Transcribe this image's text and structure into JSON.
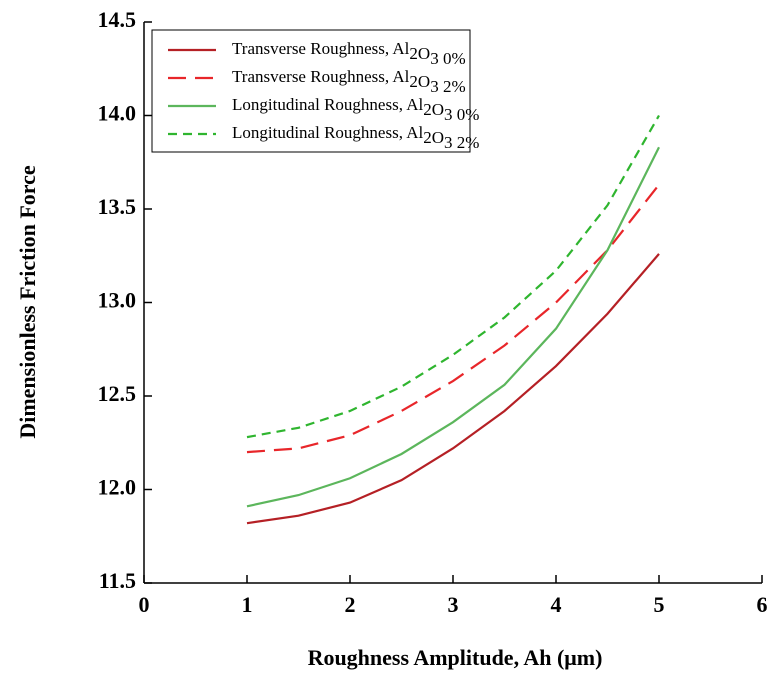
{
  "chart_data": {
    "type": "line",
    "x_label": "Roughness Amplitude, Ah (μm)",
    "y_label": "Dimensionless Friction Force",
    "x": [
      1,
      1.5,
      2,
      2.5,
      3,
      3.5,
      4,
      4.5,
      5
    ],
    "series": [
      {
        "name": "Transverse Roughness, Al2O3  0%",
        "color": "#b52025",
        "dash": "solid",
        "values": [
          11.82,
          11.86,
          11.93,
          12.05,
          12.22,
          12.42,
          12.66,
          12.94,
          13.26
        ]
      },
      {
        "name": "Transverse Roughness, Al2O3  2%",
        "color": "#e8262a",
        "dash": "long",
        "values": [
          12.2,
          12.22,
          12.29,
          12.42,
          12.58,
          12.77,
          13.0,
          13.28,
          13.63
        ]
      },
      {
        "name": "Longitudinal Roughness, Al2O3 0%",
        "color": "#5cb65c",
        "dash": "solid",
        "values": [
          11.91,
          11.97,
          12.06,
          12.19,
          12.36,
          12.56,
          12.86,
          13.28,
          13.83
        ]
      },
      {
        "name": "Longitudinal Roughness, Al2O3  2%",
        "color": "#2fb52f",
        "dash": "short",
        "values": [
          12.28,
          12.33,
          12.42,
          12.55,
          12.72,
          12.92,
          13.17,
          13.52,
          14.0
        ]
      }
    ],
    "xlim": [
      0,
      6
    ],
    "xticks": [
      0,
      1,
      2,
      3,
      4,
      5,
      6
    ],
    "ylim": [
      11.5,
      14.5
    ],
    "yticks": [
      11.5,
      {
        "value": 12,
        "label": "12.0"
      },
      12.5,
      {
        "value": 13,
        "label": "13.0"
      },
      13.5,
      {
        "value": 14,
        "label": "14.0"
      },
      14.5
    ],
    "legend": "upper-left"
  }
}
